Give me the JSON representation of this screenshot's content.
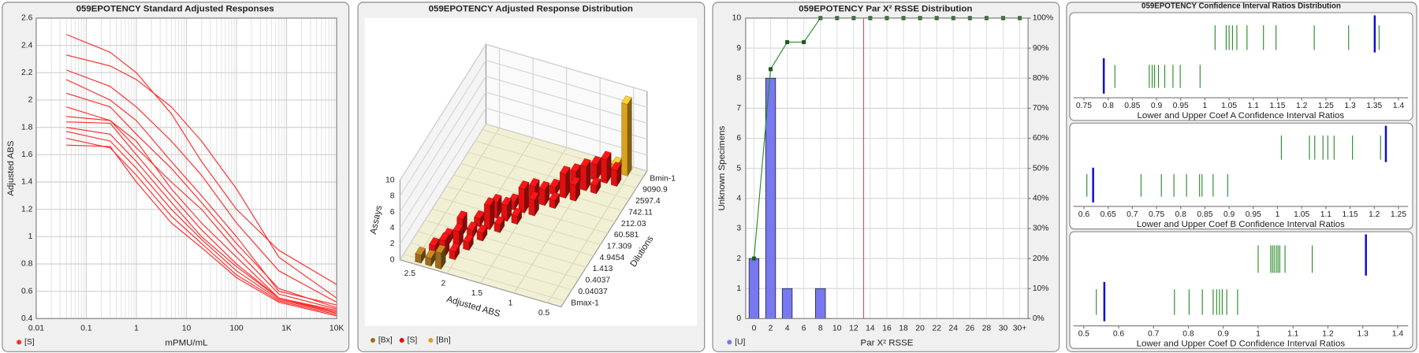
{
  "chart_data": [
    {
      "type": "line",
      "title": "059EPOTENCY Standard Adjusted Responses",
      "xlabel": "mPMU/mL",
      "ylabel": "Adjusted ABS",
      "log_x": true,
      "grid": true,
      "color": "#ff2a2a",
      "legend": {
        "name": "[S]"
      },
      "x": [
        0.04,
        0.3,
        1,
        5,
        20,
        100,
        700,
        10000
      ],
      "series": [
        {
          "values": [
            2.48,
            2.35,
            2.2,
            1.9,
            1.55,
            1.2,
            0.9,
            0.65
          ]
        },
        {
          "values": [
            2.33,
            2.25,
            2.15,
            1.95,
            1.7,
            1.35,
            0.85,
            0.55
          ]
        },
        {
          "values": [
            2.22,
            2.1,
            1.95,
            1.7,
            1.45,
            1.1,
            0.75,
            0.52
          ]
        },
        {
          "values": [
            2.15,
            2.0,
            1.85,
            1.55,
            1.3,
            1.0,
            0.6,
            0.5
          ]
        },
        {
          "values": [
            2.05,
            1.95,
            1.75,
            1.5,
            1.25,
            0.95,
            0.62,
            0.48
          ]
        },
        {
          "values": [
            1.95,
            1.85,
            1.65,
            1.4,
            1.2,
            0.9,
            0.58,
            0.47
          ]
        },
        {
          "values": [
            1.88,
            1.85,
            1.7,
            1.35,
            1.1,
            0.85,
            0.55,
            0.46
          ]
        },
        {
          "values": [
            1.84,
            1.83,
            1.6,
            1.3,
            1.05,
            0.8,
            0.55,
            0.45
          ]
        },
        {
          "values": [
            1.8,
            1.75,
            1.55,
            1.25,
            1.0,
            0.78,
            0.55,
            0.44
          ]
        },
        {
          "values": [
            1.77,
            1.7,
            1.5,
            1.2,
            0.98,
            0.75,
            0.54,
            0.44
          ]
        },
        {
          "values": [
            1.72,
            1.65,
            1.45,
            1.15,
            0.95,
            0.72,
            0.53,
            0.43
          ]
        },
        {
          "values": [
            1.67,
            1.66,
            1.4,
            1.1,
            0.92,
            0.7,
            0.52,
            0.42
          ]
        }
      ],
      "xlim": [
        0.01,
        10000
      ],
      "xticks": [
        0.01,
        0.1,
        1,
        10,
        100,
        {
          "value": 1000,
          "label": "1K"
        },
        {
          "value": 10000,
          "label": "10K"
        }
      ],
      "ylim": [
        0.4,
        2.6
      ],
      "yticks": [
        0.4,
        0.6,
        0.8,
        1,
        1.2,
        1.4,
        1.6,
        1.8,
        2,
        2.2,
        2.4,
        2.6
      ]
    },
    {
      "type": "bar3d",
      "title": "059EPOTENCY Adjusted Response Distribution",
      "xlabel": "Adjusted ABS",
      "ylabel": "Dilutions",
      "zlabel": "Assays",
      "xlim": [
        0.3,
        2.7
      ],
      "xticks": [
        0.5,
        1,
        1.5,
        2,
        2.5
      ],
      "zlim": [
        0,
        10
      ],
      "zticks": [
        0,
        2,
        4,
        6,
        8,
        10
      ],
      "dilutions": [
        "Bmax-1",
        "0.04037",
        "0.4037",
        "1.413",
        "4.9454",
        "17.309",
        "60.581",
        "212.03",
        "742.11",
        "2597.4",
        "9090.9",
        "Bmin-1"
      ],
      "series": [
        {
          "name": "[Bx]",
          "color": "#9c6b1c",
          "x": [
            2.45,
            2.3,
            2.15
          ],
          "dilution": [
            "Bmax-1",
            "Bmax-1",
            "Bmax-1"
          ],
          "values": [
            1,
            1,
            2
          ]
        },
        {
          "name": "[S]",
          "color": "#e01010",
          "x": [
            2.35,
            2.2,
            2.05,
            2.25,
            2.1,
            1.95,
            2.15,
            2.0,
            1.85,
            2.0,
            1.85,
            1.7,
            1.85,
            1.7,
            1.55,
            1.7,
            1.55,
            1.4,
            1.5,
            1.35,
            1.2,
            1.3,
            1.15,
            1.0,
            1.1,
            0.95,
            0.8,
            0.9,
            0.75,
            0.6
          ],
          "dilution": [
            "0.04037",
            "0.04037",
            "0.04037",
            "0.4037",
            "0.4037",
            "0.4037",
            "1.413",
            "1.413",
            "1.413",
            "4.9454",
            "4.9454",
            "4.9454",
            "17.309",
            "17.309",
            "17.309",
            "60.581",
            "60.581",
            "60.581",
            "212.03",
            "212.03",
            "212.03",
            "742.11",
            "742.11",
            "742.11",
            "2597.4",
            "2597.4",
            "2597.4",
            "9090.9",
            "9090.9",
            "9090.9"
          ],
          "values": [
            1,
            2,
            1,
            1,
            2,
            1,
            2,
            1,
            1,
            1,
            3,
            1,
            2,
            2,
            1,
            1,
            3,
            2,
            2,
            2,
            1,
            1,
            3,
            2,
            2,
            3,
            1,
            2,
            3,
            2
          ]
        },
        {
          "name": "[Bn]",
          "color": "#d9a21f",
          "x": [
            0.7,
            0.55
          ],
          "dilution": [
            "Bmin-1",
            "Bmin-1"
          ],
          "values": [
            1,
            9
          ]
        }
      ]
    },
    {
      "type": "bar",
      "title": "059EPOTENCY Par X² RSSE Distribution",
      "xlabel": "Par X² RSSE",
      "ylabel": "Unknown Specimens",
      "grid": true,
      "categories": [
        "0",
        "2",
        "4",
        "6",
        "8",
        "10",
        "12",
        "14",
        "16",
        "18",
        "20",
        "22",
        "24",
        "26",
        "28",
        "30",
        "30+"
      ],
      "series": [
        {
          "name": "[U]",
          "color": "#7878f0",
          "values": [
            2,
            8,
            1,
            0,
            1,
            0,
            0,
            0,
            0,
            0,
            0,
            0,
            0,
            0,
            0,
            0,
            0
          ]
        },
        {
          "color": "#2e8b2e",
          "axis": "y2",
          "values": [
            20,
            83,
            92,
            92,
            100,
            100,
            100,
            100,
            100,
            100,
            100,
            100,
            100,
            100,
            100,
            100,
            100
          ]
        }
      ],
      "reference_line": {
        "value": 13.2,
        "color": "#e05050"
      },
      "ylim": [
        0,
        10
      ],
      "yticks": [
        0,
        1,
        2,
        3,
        4,
        5,
        6,
        7,
        8,
        9,
        10
      ],
      "y2lim": [
        0,
        100
      ],
      "y2ticks": [
        {
          "value": 0,
          "label": "0%"
        },
        {
          "value": 10,
          "label": "10%"
        },
        {
          "value": 20,
          "label": "20%"
        },
        {
          "value": 30,
          "label": "30%"
        },
        {
          "value": 40,
          "label": "40%"
        },
        {
          "value": 50,
          "label": "50%"
        },
        {
          "value": 60,
          "label": "60%"
        },
        {
          "value": 70,
          "label": "70%"
        },
        {
          "value": 80,
          "label": "80%"
        },
        {
          "value": 90,
          "label": "90%"
        },
        {
          "value": 100,
          "label": "100%"
        }
      ]
    },
    {
      "type": "strip",
      "title": "059EPOTENCY Confidence Interval Ratios Distribution",
      "color": "#2e8b2e",
      "marker_color": "#1010d0",
      "panels": [
        {
          "label": "Lower and Upper Coef A Confidence Interval Ratios",
          "xlim": [
            0.728,
            1.42
          ],
          "xticks": [
            0.75,
            0.8,
            0.85,
            0.9,
            0.95,
            1,
            1.05,
            1.1,
            1.15,
            1.2,
            1.25,
            1.3,
            1.35,
            1.4
          ],
          "upper_values": [
            1.021,
            1.044,
            1.05,
            1.057,
            1.066,
            1.087,
            1.121,
            1.147,
            1.226,
            1.297,
            1.36
          ],
          "upper_marker": 1.351,
          "lower_values": [
            0.814,
            0.885,
            0.891,
            0.896,
            0.904,
            0.917,
            0.934,
            0.949,
            0.99
          ],
          "lower_marker": 0.791
        },
        {
          "label": "Lower and Upper Coef B Confidence Interval Ratios",
          "xlim": [
            0.578,
            1.27
          ],
          "xticks": [
            0.6,
            0.65,
            0.7,
            0.75,
            0.8,
            0.85,
            0.9,
            0.95,
            1,
            1.05,
            1.1,
            1.15,
            1.2,
            1.25
          ],
          "upper_values": [
            1.008,
            1.066,
            1.077,
            1.094,
            1.104,
            1.117,
            1.155,
            1.213
          ],
          "upper_marker": 1.224,
          "lower_values": [
            0.606,
            0.718,
            0.76,
            0.786,
            0.812,
            0.839,
            0.844,
            0.867,
            0.897
          ],
          "lower_marker": 0.619
        },
        {
          "label": "Lower and Upper Coef D Confidence Interval Ratios",
          "xlim": [
            0.47,
            1.43
          ],
          "xticks": [
            0.5,
            0.6,
            0.7,
            0.8,
            0.9,
            1,
            1.1,
            1.2,
            1.3,
            1.4
          ],
          "upper_values": [
            1.0,
            1.036,
            1.041,
            1.046,
            1.052,
            1.057,
            1.062,
            1.077,
            1.155
          ],
          "upper_marker": 1.309,
          "lower_values": [
            0.536,
            0.76,
            0.802,
            0.84,
            0.871,
            0.881,
            0.889,
            0.897,
            0.91,
            0.941
          ],
          "lower_marker": 0.559
        }
      ]
    }
  ]
}
